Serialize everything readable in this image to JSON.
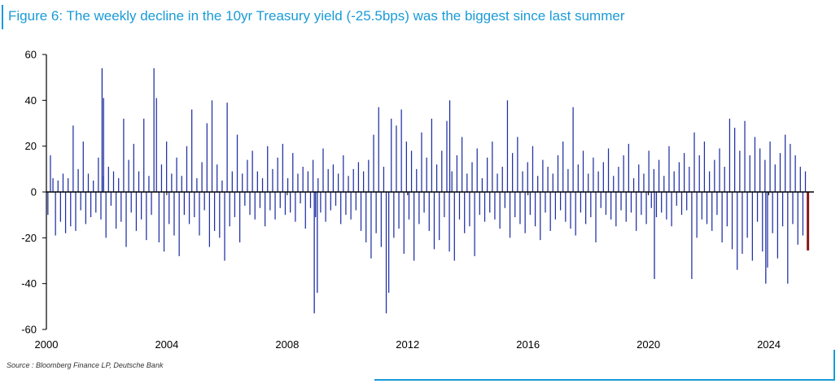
{
  "title": "Figure 6: The weekly decline in the 10yr Treasury yield (-25.5bps) was the biggest since last summer",
  "source": "Source : Bloomberg Finance LP, Deutsche Bank",
  "colors": {
    "accent": "#1a9bd7",
    "series": "#1f2fa3",
    "highlight": "#8b1a1a"
  },
  "chart_data": {
    "type": "bar",
    "x_start": 2000,
    "xlim": [
      2000,
      2025.5
    ],
    "ylim": [
      -60,
      60
    ],
    "y_ticks": [
      "60",
      "40",
      "20",
      "0",
      "-20",
      "-40",
      "-60"
    ],
    "x_ticks": [
      "2000",
      "2004",
      "2008",
      "2012",
      "2016",
      "2020",
      "2024"
    ],
    "grid": false,
    "highlight_last": -25.5,
    "notable_points": [
      {
        "x": 2001.85,
        "y": 54
      },
      {
        "x": 2001.9,
        "y": 41
      },
      {
        "x": 2008.9,
        "y": -53
      },
      {
        "x": 2009.0,
        "y": -44
      },
      {
        "x": 2013.4,
        "y": 40
      },
      {
        "x": 2020.2,
        "y": -38
      },
      {
        "x": 2023.9,
        "y": -40
      },
      {
        "x": 2025.3,
        "y": -25.5
      }
    ],
    "values": [
      -10,
      16,
      6,
      -19,
      5,
      -13,
      8,
      -18,
      6,
      -15,
      29,
      -17,
      10,
      -8,
      22,
      -14,
      8,
      -11,
      5,
      -9,
      15,
      -12,
      7,
      -20,
      11,
      -6,
      9,
      -16,
      6,
      -13,
      32,
      -24,
      14,
      -9,
      21,
      -17,
      9,
      -12,
      32,
      -21,
      7,
      -10,
      54,
      41,
      -22,
      12,
      -26,
      22,
      -14,
      8,
      -19,
      15,
      -28,
      7,
      -10,
      20,
      -14,
      36,
      -11,
      6,
      -19,
      13,
      -8,
      30,
      -24,
      40,
      -17,
      12,
      -20,
      5,
      -30,
      39,
      -15,
      9,
      -11,
      25,
      -22,
      8,
      -6,
      14,
      -10,
      18,
      -12,
      9,
      -7,
      6,
      -15,
      20,
      -8,
      10,
      -12,
      15,
      -7,
      21,
      -10,
      6,
      -9,
      17,
      -13,
      8,
      -5,
      11,
      -16,
      9,
      -7,
      14,
      -11,
      6,
      -9,
      19,
      -13,
      10,
      -8,
      12,
      -6,
      8,
      -14,
      16,
      -10,
      7,
      -12,
      10,
      -8,
      13,
      -17,
      9,
      -22,
      14,
      -29,
      25,
      -18,
      37,
      -24,
      11,
      -53,
      -44,
      32,
      -20,
      29,
      -16,
      36,
      -27,
      22,
      -12,
      18,
      -30,
      10,
      -14,
      26,
      -9,
      15,
      -17,
      32,
      -25,
      12,
      -21,
      18,
      -11,
      31,
      -26,
      9,
      -30,
      16,
      -12,
      24,
      -18,
      8,
      -15,
      13,
      -28,
      19,
      -10,
      6,
      -13,
      15,
      -9,
      22,
      -12,
      8,
      -16,
      11,
      -7,
      40,
      -20,
      17,
      -11,
      24,
      -14,
      9,
      -18,
      13,
      -10,
      20,
      -15,
      7,
      -21,
      14,
      -9,
      11,
      -17,
      8,
      -12,
      16,
      -8,
      22,
      -13,
      10,
      -16,
      37,
      -19,
      12,
      -9,
      18,
      -14,
      8,
      -11,
      15,
      -22,
      9,
      -7,
      13,
      -10,
      19,
      -12,
      7,
      -15,
      11,
      -8,
      16,
      -13,
      21,
      -9,
      6,
      -17,
      12,
      -10,
      8,
      -14,
      18,
      -7,
      10,
      -11,
      14,
      -9,
      7,
      -12,
      20,
      -15,
      9,
      -6,
      13,
      -10,
      17,
      -8,
      11,
      -38,
      26,
      -20,
      16,
      -12,
      22,
      -14,
      9,
      -17,
      14,
      -10,
      19,
      -22,
      11,
      -15,
      32,
      -25,
      28,
      -34,
      18,
      -27,
      31,
      -20,
      16,
      -30,
      24,
      -13,
      19,
      -26,
      14,
      -33,
      22,
      -18,
      12,
      -29,
      17,
      -15,
      25,
      -40,
      21,
      -14,
      16,
      -23,
      11,
      -19,
      9,
      -25.5
    ]
  }
}
